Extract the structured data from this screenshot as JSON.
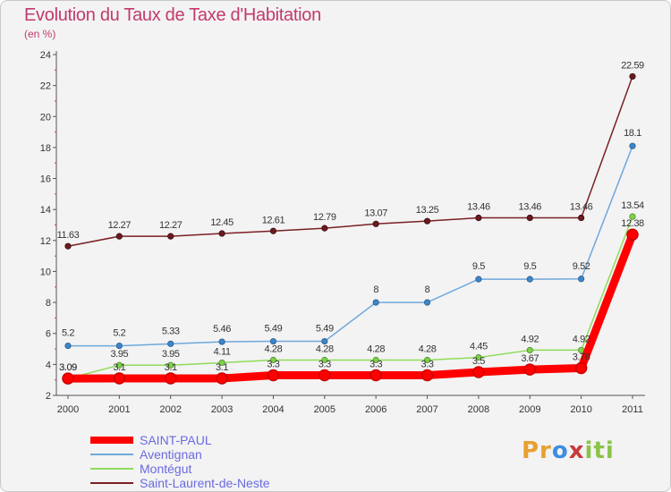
{
  "chart_data": {
    "type": "line",
    "title": "Evolution du Taux de Taxe d'Habitation",
    "subtitle": "(en %)",
    "x": [
      "2000",
      "2001",
      "2002",
      "2003",
      "2004",
      "2005",
      "2006",
      "2007",
      "2008",
      "2009",
      "2010",
      "2011"
    ],
    "ylim": [
      2,
      24
    ],
    "yticks": [
      2,
      4,
      6,
      8,
      10,
      12,
      14,
      16,
      18,
      20,
      22,
      24
    ],
    "grid": false,
    "legend_position": "bottom-left",
    "series": [
      {
        "name": "SAINT-PAUL",
        "color": "#ff0000",
        "values": [
          3.09,
          3.1,
          3.1,
          3.1,
          3.3,
          3.3,
          3.3,
          3.3,
          3.5,
          3.67,
          3.76,
          12.38
        ],
        "labels": [
          "3.09",
          "3.1",
          "3.1",
          "3.1",
          "3.3",
          "3.3",
          "3.3",
          "3.3",
          "3.5",
          "3.67",
          "3.76",
          "12.38"
        ]
      },
      {
        "name": "Aventignan",
        "color": "#6fa8dc",
        "values": [
          5.2,
          5.2,
          5.33,
          5.46,
          5.49,
          5.49,
          8,
          8,
          9.5,
          9.5,
          9.52,
          18.1
        ],
        "labels": [
          "5.2",
          "5.2",
          "5.33",
          "5.46",
          "5.49",
          "5.49",
          "8",
          "8",
          "9.5",
          "9.5",
          "9.52",
          "18.1"
        ]
      },
      {
        "name": "Montégut",
        "color": "#8fdc5a",
        "values": [
          3.09,
          3.95,
          3.95,
          4.11,
          4.28,
          4.28,
          4.28,
          4.28,
          4.45,
          4.92,
          4.92,
          13.54
        ],
        "labels": [
          "3.09",
          "3.95",
          "3.95",
          "4.11",
          "4.28",
          "4.28",
          "4.28",
          "4.28",
          "4.45",
          "4.92",
          "4.92",
          "13.54"
        ]
      },
      {
        "name": "Saint-Laurent-de-Neste",
        "color": "#7a1f24",
        "values": [
          11.63,
          12.27,
          12.27,
          12.45,
          12.61,
          12.79,
          13.07,
          13.25,
          13.46,
          13.46,
          13.46,
          22.59
        ],
        "labels": [
          "11.63",
          "12.27",
          "12.27",
          "12.45",
          "12.61",
          "12.79",
          "13.07",
          "13.25",
          "13.46",
          "13.46",
          "13.46",
          "22.59"
        ]
      }
    ]
  },
  "logo": {
    "p1": "Pr",
    "p2": "o",
    "p3": "x",
    "p4": "iti"
  }
}
